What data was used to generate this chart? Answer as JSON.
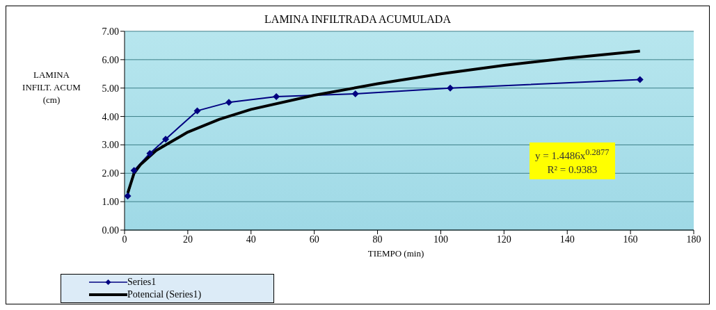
{
  "chart_data": {
    "type": "line",
    "title": "LAMINA INFILTRADA ACUMULADA",
    "xlabel": "TIEMPO (min)",
    "ylabel": "LAMINA INFILT. ACUM (cm)",
    "series": [
      {
        "name": "Series1",
        "color": "#000080",
        "x": [
          1,
          3,
          8,
          13,
          23,
          33,
          48,
          73,
          103,
          163
        ],
        "values": [
          1.2,
          2.1,
          2.7,
          3.2,
          4.2,
          4.5,
          4.7,
          4.8,
          5.0,
          5.3
        ],
        "marker": "diamond"
      },
      {
        "name": "Potencial (Series1)",
        "color": "#000000",
        "x": [
          1,
          3,
          5,
          10,
          20,
          30,
          40,
          60,
          80,
          100,
          120,
          140,
          163
        ],
        "values": [
          1.3,
          2.0,
          2.3,
          2.8,
          3.45,
          3.9,
          4.25,
          4.75,
          5.15,
          5.5,
          5.8,
          6.05,
          6.3
        ],
        "marker": "none"
      }
    ],
    "xlim": [
      0,
      180
    ],
    "xticks": [
      0,
      20,
      40,
      60,
      80,
      100,
      120,
      140,
      160,
      180
    ],
    "ylim": [
      0,
      7
    ],
    "yticks": [
      {
        "value": 0,
        "label": "0.00"
      },
      {
        "value": 1,
        "label": "1.00"
      },
      {
        "value": 2,
        "label": "2.00"
      },
      {
        "value": 3,
        "label": "3.00"
      },
      {
        "value": 4,
        "label": "4.00"
      },
      {
        "value": 5,
        "label": "5.00"
      },
      {
        "value": 6,
        "label": "6.00"
      },
      {
        "value": 7,
        "label": "7.00"
      }
    ],
    "grid": "y",
    "legend": "bottom left",
    "annotations": [
      "y = 1.4486x$^{0.2877}$",
      "R² = 0.9383"
    ]
  }
}
